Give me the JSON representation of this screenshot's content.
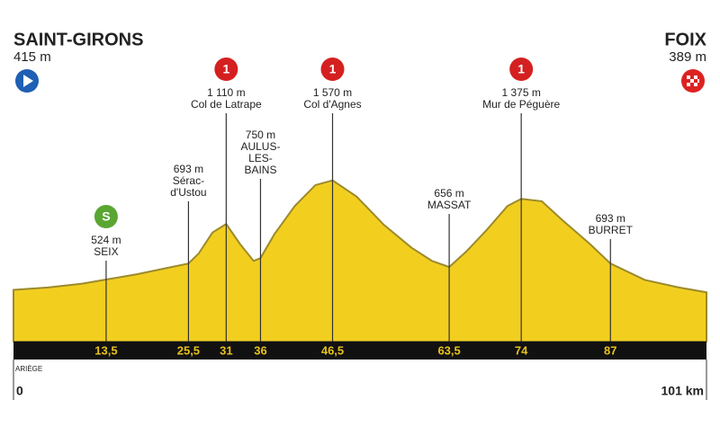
{
  "chart_data": {
    "type": "area",
    "start": {
      "name": "SAINT-GIRONS",
      "altitude": "415 m"
    },
    "finish": {
      "name": "FOIX",
      "altitude": "389 m"
    },
    "region": "ARIÈGE",
    "x_start_label": "0",
    "x_end_label": "101 km",
    "color": "#f2cf1f",
    "edge_color": "#9c8a2c",
    "x": [
      0,
      5,
      10,
      13.5,
      18,
      22,
      25.5,
      27,
      29,
      31,
      33,
      35,
      36,
      38,
      41,
      44,
      46.5,
      50,
      54,
      58,
      61,
      63.5,
      66,
      69,
      72,
      74,
      77,
      80,
      84,
      87,
      92,
      97,
      101
    ],
    "values": [
      415,
      440,
      480,
      524,
      580,
      640,
      693,
      800,
      1020,
      1110,
      900,
      720,
      750,
      1000,
      1300,
      1520,
      1570,
      1400,
      1100,
      860,
      720,
      656,
      820,
      1050,
      1300,
      1375,
      1350,
      1150,
      900,
      693,
      520,
      440,
      389
    ],
    "xlim": [
      0,
      101
    ],
    "ylim": [
      -130,
      3340
    ],
    "xticks": [
      {
        "value": 13.5,
        "label": "13,5"
      },
      {
        "value": 25.5,
        "label": "25,5"
      },
      31,
      36,
      {
        "value": 46.5,
        "label": "46,5"
      },
      {
        "value": 63.5,
        "label": "63,5"
      },
      74,
      87
    ],
    "points": [
      {
        "km": 13.5,
        "altitude": "524 m",
        "lines": [
          "SEIX"
        ],
        "badge": "S"
      },
      {
        "km": 25.5,
        "altitude": "693 m",
        "lines": [
          "Sérac-",
          "d'Ustou"
        ]
      },
      {
        "km": 31,
        "altitude": "1 110 m",
        "lines": [
          "Col de Latrape"
        ],
        "badge": "1"
      },
      {
        "km": 36,
        "altitude": "750 m",
        "lines": [
          "AULUS-",
          "LES-",
          "BAINS"
        ]
      },
      {
        "km": 46.5,
        "altitude": "1 570 m",
        "lines": [
          "Col d'Agnes"
        ],
        "badge": "1"
      },
      {
        "km": 63.5,
        "altitude": "656 m",
        "lines": [
          "MASSAT"
        ]
      },
      {
        "km": 74,
        "altitude": "1 375 m",
        "lines": [
          "Mur de Péguère"
        ],
        "badge": "1"
      },
      {
        "km": 87,
        "altitude": "693 m",
        "lines": [
          "BURRET"
        ]
      }
    ]
  }
}
